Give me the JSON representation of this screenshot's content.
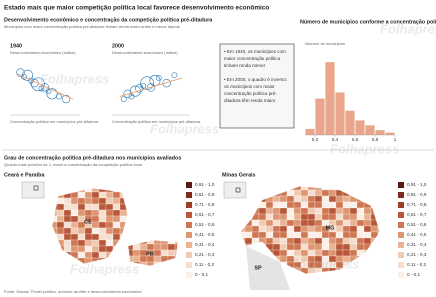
{
  "header": {
    "title": "Estado mais que maior competição política local favorece desenvolvimento econômico"
  },
  "watermark": "Folhapress",
  "chart_data": [
    {
      "type": "scatter",
      "section_title": "Desenvolvimento econômico e concentração da competição política pré-ditadura",
      "section_subtitle": "Municípios com maior concentração política pré-ditadura tinham renda maior antes e menor depois",
      "title": "1940",
      "y_label": "Desenvolvimento econômico (índice)",
      "x_label": "Concentração política em municípios pré-ditadura",
      "x": [
        0.15,
        0.2,
        0.25,
        0.3,
        0.35,
        0.4,
        0.45,
        0.5,
        0.55,
        0.6,
        0.7,
        0.8
      ],
      "values": [
        80,
        72,
        75,
        65,
        60,
        58,
        50,
        52,
        45,
        40,
        35,
        30
      ],
      "sizes": [
        3,
        2,
        4,
        2,
        3,
        5,
        2,
        3,
        2,
        4,
        2,
        3
      ],
      "color": "#2a7ab8",
      "trend": {
        "x": [
          0.1,
          0.9
        ],
        "y": [
          78,
          30
        ],
        "color": "#f0a070"
      },
      "xlim": [
        0,
        1
      ],
      "ylim": [
        0,
        100
      ]
    },
    {
      "type": "scatter",
      "title": "2000",
      "y_label": "Desenvolvimento econômico (índice)",
      "x_label": "Concentração política em municípios pré-ditadura",
      "x": [
        0.15,
        0.2,
        0.25,
        0.3,
        0.35,
        0.4,
        0.45,
        0.5,
        0.55,
        0.6,
        0.7,
        0.8
      ],
      "values": [
        30,
        40,
        35,
        45,
        50,
        55,
        60,
        52,
        65,
        70,
        60,
        75
      ],
      "sizes": [
        2,
        3,
        2,
        4,
        3,
        2,
        5,
        3,
        4,
        2,
        3,
        2
      ],
      "color": "#2a7ab8",
      "trend": {
        "x": [
          0.1,
          0.9
        ],
        "y": [
          35,
          70
        ],
        "color": "#f0a070"
      },
      "xlim": [
        0,
        1
      ],
      "ylim": [
        0,
        100
      ]
    },
    {
      "type": "histogram",
      "title": "Número de municípios conforme a concentração política pré-ditadura",
      "y_label": "Número de municípios",
      "bins": [
        0.1,
        0.2,
        0.3,
        0.4,
        0.5,
        0.6,
        0.7,
        0.8,
        0.9,
        1.0
      ],
      "values": [
        5,
        30,
        60,
        35,
        20,
        12,
        8,
        4,
        2
      ],
      "color": "#e9a68c",
      "xlim": [
        0.1,
        1.0
      ],
      "ylim": [
        0,
        70
      ],
      "xticks": [
        {
          "value": 0.2,
          "label": "0,2"
        },
        {
          "value": 0.4,
          "label": "0,4"
        },
        {
          "value": 0.6,
          "label": "0,6"
        },
        {
          "value": 0.8,
          "label": "0,8"
        },
        1
      ]
    }
  ],
  "annotation": [
    "• Em 1940, os municípios com",
    "maior concentração política",
    "tinham renda menor",
    "",
    "• Em 2000, o quadro é inverso:",
    "os municípios com maior",
    "concentração política pré-",
    "ditadura têm renda maior"
  ],
  "maps": {
    "title": "Grau de concentração política pré-ditadura nos municípios avaliados",
    "subtitle": "Quanto mais próximo de 1, maior a concentração da competição política local",
    "items": [
      {
        "title": "Ceará e Paraíba",
        "labels": [
          "CE",
          "PB"
        ]
      },
      {
        "title": "Minas Gerais",
        "labels": [
          "MG",
          "SP"
        ]
      }
    ],
    "legend": [
      {
        "label": "0,91 - 1,0",
        "color": "#5a1a12"
      },
      {
        "label": "0,81 - 0,9",
        "color": "#7c2a1c"
      },
      {
        "label": "0,71 - 0,8",
        "color": "#9c3d28"
      },
      {
        "label": "0,61 - 0,7",
        "color": "#b9573a"
      },
      {
        "label": "0,51 - 0,6",
        "color": "#cf7653"
      },
      {
        "label": "0,41 - 0,5",
        "color": "#dd9572"
      },
      {
        "label": "0,31 - 0,4",
        "color": "#e8b293"
      },
      {
        "label": "0,21 - 0,3",
        "color": "#f0cbb3"
      },
      {
        "label": "0,11 - 0,2",
        "color": "#f6dfd0"
      },
      {
        "label": "0 - 0,1",
        "color": "#fbefe7"
      }
    ]
  },
  "footer": "Fonte: Estudo \"Poder político, domínio da elite e desenvolvimento econômico\""
}
